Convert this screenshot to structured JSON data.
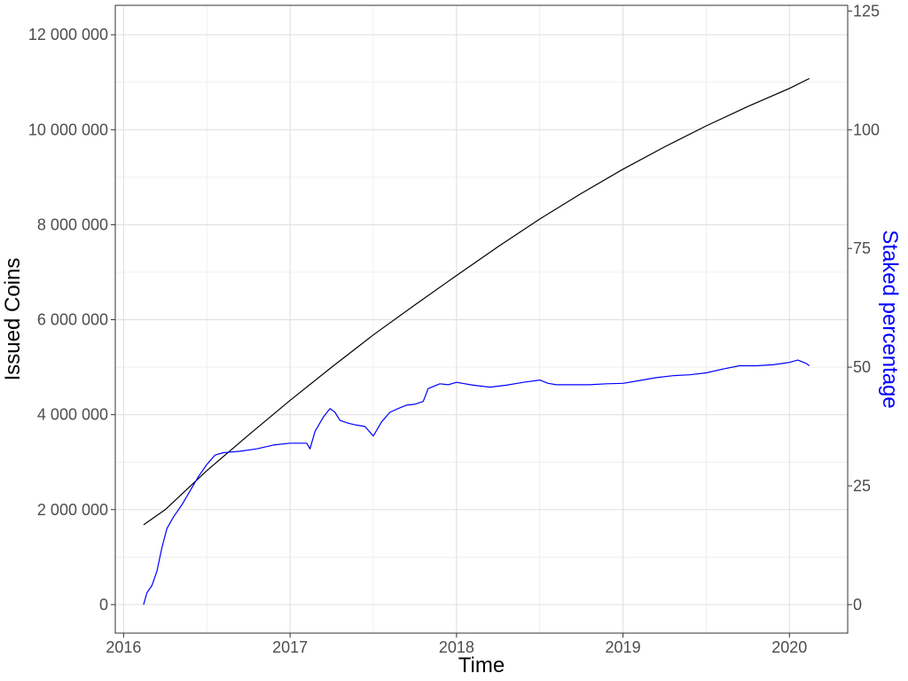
{
  "chart_data": {
    "type": "line",
    "title": "",
    "xlabel": "Time",
    "ylabel": "Issued Coins",
    "y2label": "Staked percentage",
    "xlim": [
      2015.95,
      2020.35
    ],
    "ylim": [
      -600000,
      12620000
    ],
    "y2lim": [
      -6,
      126.2
    ],
    "x_ticks": [
      2016,
      2017,
      2018,
      2019,
      2020
    ],
    "x_tick_labels": [
      "2016",
      "2017",
      "2018",
      "2019",
      "2020"
    ],
    "y_ticks": [
      0,
      2000000,
      4000000,
      6000000,
      8000000,
      10000000,
      12000000
    ],
    "y_tick_labels": [
      "0",
      "2 000 000",
      "4 000 000",
      "6 000 000",
      "8 000 000",
      "10 000 000",
      "12 000 000"
    ],
    "y2_ticks": [
      0,
      25,
      50,
      75,
      100,
      125
    ],
    "y2_tick_labels": [
      "0",
      "25",
      "50",
      "75",
      "100",
      "125"
    ],
    "grid": true,
    "series": [
      {
        "axis": "left",
        "color": "#000000",
        "points": [
          [
            2016.12,
            1680000
          ],
          [
            2016.25,
            2000000
          ],
          [
            2016.5,
            2820000
          ],
          [
            2016.75,
            3570000
          ],
          [
            2017.0,
            4300000
          ],
          [
            2017.25,
            5000000
          ],
          [
            2017.5,
            5680000
          ],
          [
            2017.75,
            6310000
          ],
          [
            2018.0,
            6930000
          ],
          [
            2018.25,
            7540000
          ],
          [
            2018.5,
            8120000
          ],
          [
            2018.75,
            8660000
          ],
          [
            2019.0,
            9170000
          ],
          [
            2019.25,
            9640000
          ],
          [
            2019.5,
            10080000
          ],
          [
            2019.75,
            10490000
          ],
          [
            2020.0,
            10870000
          ],
          [
            2020.12,
            11080000
          ]
        ]
      },
      {
        "axis": "right",
        "color": "#0000ff",
        "points": [
          [
            2016.12,
            0
          ],
          [
            2016.14,
            2.5
          ],
          [
            2016.17,
            4
          ],
          [
            2016.2,
            7
          ],
          [
            2016.23,
            12
          ],
          [
            2016.26,
            16
          ],
          [
            2016.3,
            18.5
          ],
          [
            2016.35,
            21
          ],
          [
            2016.4,
            24
          ],
          [
            2016.45,
            27
          ],
          [
            2016.5,
            29.5
          ],
          [
            2016.55,
            31.5
          ],
          [
            2016.6,
            32
          ],
          [
            2016.7,
            32.3
          ],
          [
            2016.8,
            32.8
          ],
          [
            2016.9,
            33.6
          ],
          [
            2017.0,
            34
          ],
          [
            2017.1,
            34
          ],
          [
            2017.12,
            32.8
          ],
          [
            2017.15,
            36.5
          ],
          [
            2017.2,
            39.5
          ],
          [
            2017.24,
            41.3
          ],
          [
            2017.27,
            40.5
          ],
          [
            2017.3,
            38.8
          ],
          [
            2017.35,
            38.2
          ],
          [
            2017.4,
            37.8
          ],
          [
            2017.45,
            37.5
          ],
          [
            2017.5,
            35.5
          ],
          [
            2017.55,
            38.5
          ],
          [
            2017.6,
            40.5
          ],
          [
            2017.65,
            41.3
          ],
          [
            2017.7,
            42
          ],
          [
            2017.75,
            42.2
          ],
          [
            2017.8,
            42.8
          ],
          [
            2017.83,
            45.5
          ],
          [
            2017.9,
            46.5
          ],
          [
            2017.95,
            46.3
          ],
          [
            2018.0,
            46.8
          ],
          [
            2018.1,
            46.2
          ],
          [
            2018.2,
            45.8
          ],
          [
            2018.3,
            46.2
          ],
          [
            2018.4,
            46.8
          ],
          [
            2018.5,
            47.3
          ],
          [
            2018.55,
            46.6
          ],
          [
            2018.6,
            46.3
          ],
          [
            2018.8,
            46.3
          ],
          [
            2018.9,
            46.5
          ],
          [
            2019.0,
            46.6
          ],
          [
            2019.1,
            47.2
          ],
          [
            2019.2,
            47.8
          ],
          [
            2019.3,
            48.2
          ],
          [
            2019.4,
            48.4
          ],
          [
            2019.5,
            48.8
          ],
          [
            2019.6,
            49.6
          ],
          [
            2019.7,
            50.3
          ],
          [
            2019.8,
            50.3
          ],
          [
            2019.9,
            50.5
          ],
          [
            2020.0,
            51
          ],
          [
            2020.05,
            51.5
          ],
          [
            2020.1,
            50.8
          ],
          [
            2020.12,
            50.3
          ]
        ]
      }
    ]
  }
}
